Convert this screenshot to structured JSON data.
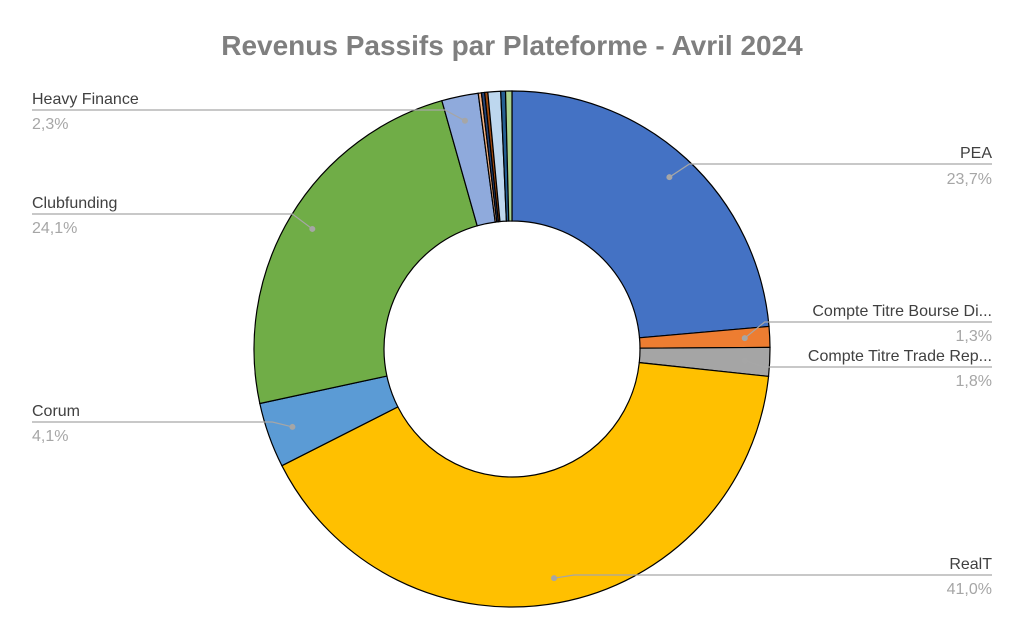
{
  "chart_data": {
    "type": "pie",
    "donut": true,
    "title": "Revenus Passifs par Plateforme - Avril 2024",
    "slices": [
      {
        "label": "PEA",
        "percent_label": "23,7%",
        "value": 23.7,
        "color": "#4472c4"
      },
      {
        "label": "Compte Titre Bourse Di...",
        "percent_label": "1,3%",
        "value": 1.3,
        "color": "#ed7d31"
      },
      {
        "label": "Compte Titre Trade Rep...",
        "percent_label": "1,8%",
        "value": 1.8,
        "color": "#a5a5a5"
      },
      {
        "label": "RealT",
        "percent_label": "41,0%",
        "value": 41.0,
        "color": "#ffc000"
      },
      {
        "label": "Corum",
        "percent_label": "4,1%",
        "value": 4.1,
        "color": "#5b9bd5"
      },
      {
        "label": "Clubfunding",
        "percent_label": "24,1%",
        "value": 24.1,
        "color": "#70ad47"
      },
      {
        "label": "Heavy Finance",
        "percent_label": "2,3%",
        "value": 2.3,
        "color": "#8faadc"
      },
      {
        "label": "",
        "percent_label": "",
        "value": 0.2,
        "color": "#f4b183"
      },
      {
        "label": "",
        "percent_label": "",
        "value": 0.2,
        "color": "#264478"
      },
      {
        "label": "",
        "percent_label": "",
        "value": 0.2,
        "color": "#9e480e"
      },
      {
        "label": "",
        "percent_label": "",
        "value": 0.8,
        "color": "#bdd7ee"
      },
      {
        "label": "",
        "percent_label": "",
        "value": 0.3,
        "color": "#255e91"
      },
      {
        "label": "",
        "percent_label": "",
        "value": 0.4,
        "color": "#a9d18e"
      }
    ],
    "label_color_name": "#404040",
    "label_color_pct": "#a6a6a6",
    "leader_line_color": "#a6a6a6"
  }
}
